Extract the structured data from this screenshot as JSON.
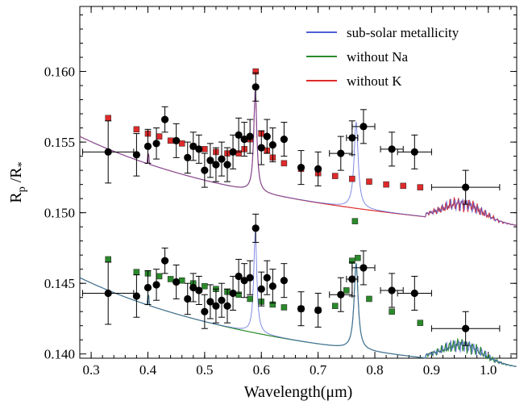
{
  "chart_data": {
    "type": "scatter",
    "title": "",
    "xlabel": "Wavelength(μm)",
    "ylabel": "R_p / R_*",
    "xlim": [
      0.28,
      1.05
    ],
    "ylim": [
      0.1397,
      0.1646
    ],
    "grid": false,
    "legend_position": "top-right",
    "xticks": [
      0.3,
      0.4,
      0.5,
      0.6,
      0.7,
      0.8,
      0.9,
      1.0
    ],
    "xtick_labels": [
      "0.3",
      "0.4",
      "0.5",
      "0.6",
      "0.7",
      "0.8",
      "0.9",
      "1.0"
    ],
    "yticks": [
      0.14,
      0.145,
      0.15,
      0.155,
      0.16
    ],
    "ytick_labels": [
      "0.140",
      "0.145",
      "0.150",
      "0.155",
      "0.160"
    ],
    "series": [
      {
        "name": "sub-solar metallicity",
        "color": "#4f5fd6"
      },
      {
        "name": "without Na",
        "color": "#2a8a2a"
      },
      {
        "name": "without K",
        "color": "#e02a2a"
      }
    ],
    "model_points_upper": {
      "x": [
        0.33,
        0.38,
        0.4,
        0.42,
        0.44,
        0.46,
        0.48,
        0.5,
        0.52,
        0.54,
        0.56,
        0.57,
        0.58,
        0.59,
        0.6,
        0.61,
        0.62,
        0.64,
        0.67,
        0.7,
        0.73,
        0.76,
        0.79,
        0.82,
        0.85,
        0.88
      ],
      "y": [
        0.1567,
        0.1559,
        0.1556,
        0.1554,
        0.1551,
        0.1549,
        0.1547,
        0.1545,
        0.1543,
        0.1542,
        0.1542,
        0.1545,
        0.1552,
        0.16,
        0.1556,
        0.1544,
        0.1539,
        0.1535,
        0.1531,
        0.1528,
        0.1526,
        0.1524,
        0.1522,
        0.152,
        0.1519,
        0.1518
      ]
    },
    "model_points_lower": {
      "x": [
        0.33,
        0.38,
        0.4,
        0.42,
        0.44,
        0.46,
        0.48,
        0.5,
        0.52,
        0.54,
        0.56,
        0.58,
        0.6,
        0.62,
        0.64,
        0.67,
        0.7,
        0.73,
        0.75,
        0.76,
        0.765,
        0.77,
        0.79,
        0.83,
        0.88
      ],
      "y": [
        0.1467,
        0.1458,
        0.1457,
        0.1455,
        0.1453,
        0.1452,
        0.145,
        0.1448,
        0.1446,
        0.1444,
        0.1442,
        0.1439,
        0.1437,
        0.1435,
        0.1433,
        0.1432,
        0.1431,
        0.1434,
        0.1445,
        0.1466,
        0.1494,
        0.1468,
        0.1439,
        0.143,
        0.1422
      ]
    },
    "observations_upper": {
      "x": [
        0.33,
        0.38,
        0.4,
        0.415,
        0.43,
        0.45,
        0.47,
        0.48,
        0.49,
        0.5,
        0.51,
        0.52,
        0.53,
        0.54,
        0.55,
        0.56,
        0.57,
        0.58,
        0.59,
        0.6,
        0.61,
        0.62,
        0.64,
        0.67,
        0.7,
        0.74,
        0.76,
        0.78,
        0.83,
        0.87,
        0.96
      ],
      "y": [
        0.1543,
        0.1541,
        0.1547,
        0.1549,
        0.1566,
        0.1551,
        0.1539,
        0.1547,
        0.1545,
        0.153,
        0.1537,
        0.1534,
        0.1538,
        0.1534,
        0.1543,
        0.1555,
        0.1552,
        0.1554,
        0.1589,
        0.1546,
        0.1554,
        0.1548,
        0.1552,
        0.1532,
        0.1531,
        0.1542,
        0.1553,
        0.1561,
        0.1545,
        0.1543,
        0.1518
      ],
      "yerr": [
        0.0022,
        0.0015,
        0.0012,
        0.0011,
        0.0009,
        0.0012,
        0.0011,
        0.001,
        0.001,
        0.0012,
        0.0012,
        0.0012,
        0.0012,
        0.0012,
        0.0012,
        0.0012,
        0.0012,
        0.0012,
        0.001,
        0.0012,
        0.0012,
        0.0012,
        0.0012,
        0.0012,
        0.0012,
        0.0012,
        0.0012,
        0.0012,
        0.0012,
        0.0012,
        0.0012
      ],
      "xerr": [
        0.045,
        0.0,
        0.0,
        0.0,
        0.0,
        0.0,
        0.0,
        0.0,
        0.0,
        0.0,
        0.0,
        0.0,
        0.0,
        0.0,
        0.0,
        0.0,
        0.0,
        0.0,
        0.0,
        0.0,
        0.0,
        0.0,
        0.0,
        0.0,
        0.0,
        0.02,
        0.01,
        0.02,
        0.02,
        0.03,
        0.06
      ]
    },
    "observations_lower": {
      "x": [
        0.33,
        0.38,
        0.4,
        0.415,
        0.43,
        0.45,
        0.47,
        0.48,
        0.49,
        0.5,
        0.51,
        0.52,
        0.53,
        0.54,
        0.55,
        0.56,
        0.57,
        0.58,
        0.59,
        0.6,
        0.61,
        0.62,
        0.64,
        0.67,
        0.7,
        0.74,
        0.76,
        0.78,
        0.83,
        0.87,
        0.96
      ],
      "y": [
        0.1443,
        0.1441,
        0.1447,
        0.1449,
        0.1466,
        0.1451,
        0.1439,
        0.1447,
        0.1445,
        0.143,
        0.1437,
        0.1434,
        0.1438,
        0.1434,
        0.1443,
        0.1455,
        0.1452,
        0.1454,
        0.1489,
        0.1446,
        0.1454,
        0.1448,
        0.1452,
        0.1432,
        0.1431,
        0.1442,
        0.1453,
        0.1461,
        0.1445,
        0.1443,
        0.1418
      ],
      "yerr": [
        0.0022,
        0.0015,
        0.0012,
        0.0011,
        0.0009,
        0.0012,
        0.0011,
        0.001,
        0.001,
        0.0012,
        0.0012,
        0.0012,
        0.0012,
        0.0012,
        0.0012,
        0.0012,
        0.0012,
        0.0012,
        0.001,
        0.0012,
        0.0012,
        0.0012,
        0.0012,
        0.0012,
        0.0012,
        0.0012,
        0.0012,
        0.0012,
        0.0012,
        0.0012,
        0.0012
      ],
      "xerr": [
        0.045,
        0.0,
        0.0,
        0.0,
        0.0,
        0.0,
        0.0,
        0.0,
        0.0,
        0.0,
        0.0,
        0.0,
        0.0,
        0.0,
        0.0,
        0.0,
        0.0,
        0.0,
        0.0,
        0.0,
        0.0,
        0.0,
        0.0,
        0.0,
        0.0,
        0.02,
        0.01,
        0.02,
        0.02,
        0.03,
        0.06
      ]
    }
  }
}
